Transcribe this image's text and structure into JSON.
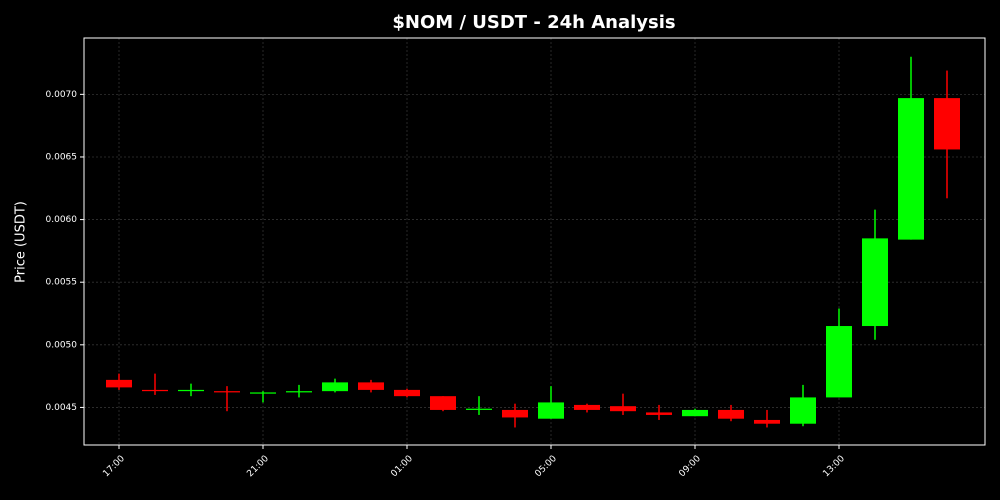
{
  "chart_data": {
    "type": "candlestick",
    "title": "$NOM / USDT - 24h Analysis",
    "y_label": "Price (USDT)",
    "categories": [
      "17:00",
      null,
      null,
      null,
      "21:00",
      null,
      null,
      null,
      "01:00",
      null,
      null,
      null,
      "05:00",
      null,
      null,
      null,
      "09:00",
      null,
      null,
      null,
      "13:00",
      null,
      null,
      null
    ],
    "open": [
      0.00472,
      0.00464,
      0.00463,
      0.00463,
      0.00461,
      0.00462,
      0.00463,
      0.0047,
      0.00464,
      0.00459,
      0.00448,
      0.00448,
      0.00441,
      0.00452,
      0.00451,
      0.00446,
      0.00443,
      0.00448,
      0.0044,
      0.00437,
      0.00458,
      0.00515,
      0.00584,
      0.00697
    ],
    "high": [
      0.00477,
      0.00477,
      0.00469,
      0.00467,
      0.00463,
      0.00468,
      0.00473,
      0.00472,
      0.00465,
      0.00459,
      0.00459,
      0.00453,
      0.00467,
      0.00453,
      0.00461,
      0.00452,
      0.00449,
      0.00452,
      0.00448,
      0.00468,
      0.00529,
      0.00608,
      0.0073,
      0.00719
    ],
    "low": [
      0.00464,
      0.0046,
      0.00459,
      0.00447,
      0.00454,
      0.00458,
      0.00462,
      0.00462,
      0.00458,
      0.00447,
      0.00444,
      0.00434,
      0.00441,
      0.00446,
      0.00444,
      0.0044,
      0.00443,
      0.00439,
      0.00434,
      0.00435,
      0.00458,
      0.00504,
      0.00584,
      0.00617
    ],
    "close": [
      0.00466,
      0.00463,
      0.00464,
      0.00462,
      0.00462,
      0.00463,
      0.0047,
      0.00464,
      0.00459,
      0.00448,
      0.00449,
      0.00442,
      0.00454,
      0.00448,
      0.00447,
      0.00444,
      0.00448,
      0.00441,
      0.00437,
      0.00458,
      0.00515,
      0.00585,
      0.00697,
      0.00656
    ],
    "up_color": "#00ff00",
    "down_color": "#ff0000",
    "ylim": [
      0.0042,
      0.00745
    ],
    "yticks": [
      0.0045,
      {
        "value": 0.005,
        "label": "0.0050"
      },
      0.0055,
      {
        "value": 0.006,
        "label": "0.0060"
      },
      0.0065,
      {
        "value": 0.007,
        "label": "0.0070"
      }
    ],
    "grid": true
  }
}
